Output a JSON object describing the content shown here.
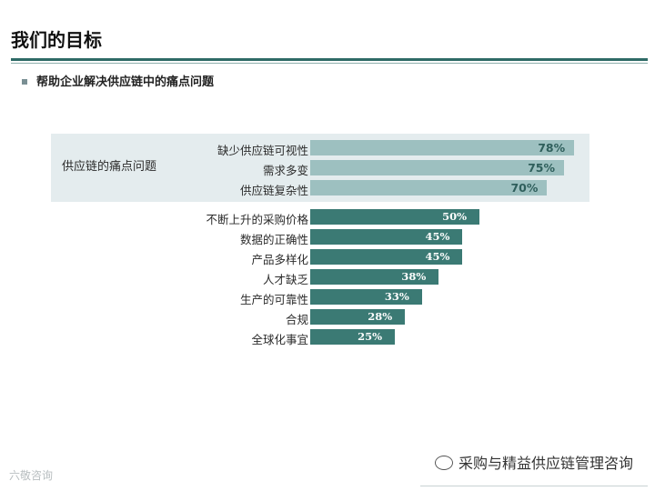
{
  "slide": {
    "title": "我们的目标",
    "bullet": "帮助企业解决供应链中的痛点问题"
  },
  "chart_data": {
    "type": "bar",
    "orientation": "horizontal",
    "group_label": "供应链的痛点问题",
    "categories": [
      "缺少供应链可视性",
      "需求多变",
      "供应链复杂性",
      "不断上升的采购价格",
      "数据的正确性",
      "产品多样化",
      "人才缺乏",
      "生产的可靠性",
      "合规",
      "全球化事宜"
    ],
    "values": [
      78,
      75,
      70,
      50,
      45,
      45,
      38,
      33,
      28,
      25
    ],
    "value_labels": [
      "78%",
      "75%",
      "70%",
      "50%",
      "45%",
      "45%",
      "38%",
      "33%",
      "28%",
      "25%"
    ],
    "highlighted_count": 3,
    "xlim": [
      0,
      100
    ],
    "grid": false,
    "colors": {
      "highlight": "#9dc0c0",
      "default": "#3b7a74",
      "panel": "#e4ecee"
    }
  },
  "footer": {
    "wechat_name": "采购与精益供应链管理咨询",
    "watermark": "六敬咨询"
  }
}
